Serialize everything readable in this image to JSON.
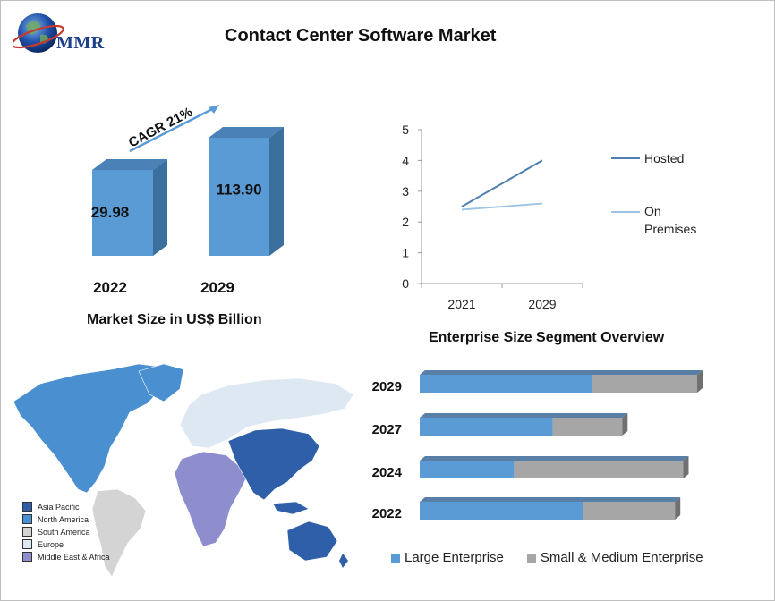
{
  "header": {
    "title": "Contact Center Software Market",
    "logo_text": "MMR"
  },
  "colors": {
    "bar_front": "#5b9bd5",
    "bar_side": "#3a6f9e",
    "bar_top": "#4a82b8",
    "hosted_line": "#4f7fae",
    "on_premises_line": "#9dc3e6",
    "large_enterprise": "#5b9bd5",
    "sme": "#a6a6a6",
    "asia_pacific": "#2e5fa8",
    "north_america": "#4a8fd0",
    "south_america": "#d4d4d4",
    "europe": "#dde8f3",
    "middle_east_africa": "#8e8ecf"
  },
  "chart_data": [
    {
      "type": "bar",
      "title": "Market Size in US$ Billion",
      "categories": [
        "2022",
        "2029"
      ],
      "values": [
        29.98,
        113.9
      ],
      "value_labels": [
        "29.98",
        "113.90"
      ],
      "annotation": "CAGR 21%"
    },
    {
      "type": "line",
      "title": "",
      "x": [
        "2021",
        "2029"
      ],
      "ylim": [
        0,
        5
      ],
      "yticks": [
        "0",
        "1",
        "2",
        "3",
        "4",
        "5"
      ],
      "series": [
        {
          "name": "Hosted",
          "values": [
            2.5,
            4.0
          ]
        },
        {
          "name": "On Premises",
          "values": [
            2.4,
            2.6
          ]
        }
      ],
      "legend_placement": "right"
    },
    {
      "type": "bar",
      "orientation": "horizontal-stacked",
      "title": "Enterprise Size Segment  Overview",
      "categories": [
        "2029",
        "2027",
        "2024",
        "2022"
      ],
      "series": [
        {
          "name": "Large Enterprise",
          "values": [
            62,
            48,
            34,
            59
          ]
        },
        {
          "name": "Small & Medium Enterprise",
          "values": [
            38,
            25,
            61,
            33
          ]
        }
      ],
      "legend_placement": "bottom"
    }
  ],
  "map": {
    "legend": [
      {
        "label": "Asia Pacific",
        "color": "#2e5fa8"
      },
      {
        "label": "North America",
        "color": "#4a8fd0"
      },
      {
        "label": "South America",
        "color": "#d4d4d4"
      },
      {
        "label": "Europe",
        "color": "#dde8f3"
      },
      {
        "label": "Middle East & Africa",
        "color": "#8e8ecf"
      }
    ]
  }
}
